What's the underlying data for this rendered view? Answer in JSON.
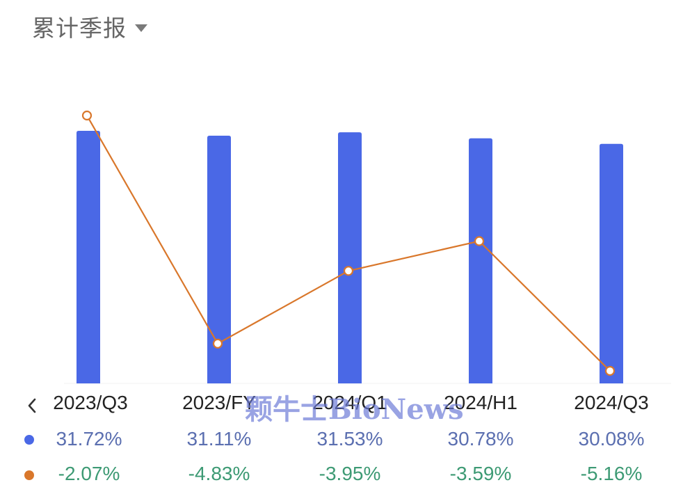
{
  "header": {
    "title": "累计季报"
  },
  "colors": {
    "bar": "#4a68e6",
    "line": "#d9772b",
    "value1": "#5b6fb0",
    "value2": "#3d9a74",
    "legend_dot1": "#4a68e6",
    "legend_dot2": "#d9772b"
  },
  "icons": {
    "dropdown": "triangle-down-icon",
    "prev": "chevron-left-icon"
  },
  "watermark": "颗牛士BioNews",
  "chart_data": {
    "type": "bar",
    "categories": [
      "2023/Q3",
      "2023/FY",
      "2024/Q1",
      "2024/H1",
      "2024/Q3"
    ],
    "series": [
      {
        "type": "bar",
        "values": [
          31.72,
          31.11,
          31.53,
          30.78,
          30.08
        ],
        "labels": [
          "31.72%",
          "31.11%",
          "31.53%",
          "30.78%",
          "30.08%"
        ]
      },
      {
        "type": "line",
        "values": [
          -2.07,
          -4.83,
          -3.95,
          -3.59,
          -5.16
        ],
        "labels": [
          "-2.07%",
          "-4.83%",
          "-3.95%",
          "-3.59%",
          "-5.16%"
        ]
      }
    ],
    "title": "",
    "xlabel": "",
    "ylabel": "",
    "legend": "bottom rows"
  }
}
